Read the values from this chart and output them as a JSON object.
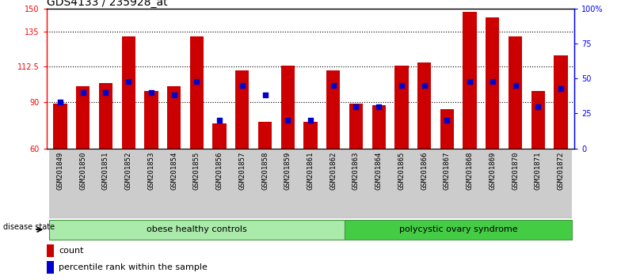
{
  "title": "GDS4133 / 235928_at",
  "samples": [
    "GSM201849",
    "GSM201850",
    "GSM201851",
    "GSM201852",
    "GSM201853",
    "GSM201854",
    "GSM201855",
    "GSM201856",
    "GSM201857",
    "GSM201858",
    "GSM201859",
    "GSM201861",
    "GSM201862",
    "GSM201863",
    "GSM201864",
    "GSM201865",
    "GSM201866",
    "GSM201867",
    "GSM201868",
    "GSM201869",
    "GSM201870",
    "GSM201871",
    "GSM201872"
  ],
  "counts": [
    89,
    100,
    102,
    132,
    97,
    100,
    132,
    76,
    110,
    77,
    113,
    77,
    110,
    89,
    88,
    113,
    115,
    85,
    148,
    144,
    132,
    97,
    120
  ],
  "percentile_ranks": [
    33,
    40,
    40,
    48,
    40,
    38,
    48,
    20,
    45,
    38,
    20,
    20,
    45,
    30,
    30,
    45,
    45,
    20,
    48,
    48,
    45,
    30,
    43
  ],
  "groups": [
    "obese",
    "obese",
    "obese",
    "obese",
    "obese",
    "obese",
    "obese",
    "obese",
    "obese",
    "obese",
    "obese",
    "obese",
    "obese",
    "poly",
    "poly",
    "poly",
    "poly",
    "poly",
    "poly",
    "poly",
    "poly",
    "poly",
    "poly"
  ],
  "group_labels": [
    "obese healthy controls",
    "polycystic ovary syndrome"
  ],
  "obese_color": "#AAEAAA",
  "poly_color": "#44CC44",
  "ylim_left": [
    60,
    150
  ],
  "yticks_left": [
    60,
    90,
    112.5,
    135,
    150
  ],
  "ytick_labels_left": [
    "60",
    "90",
    "112.5",
    "135",
    "150"
  ],
  "ylim_right": [
    0,
    100
  ],
  "yticks_right": [
    0,
    25,
    50,
    75,
    100
  ],
  "ytick_labels_right": [
    "0",
    "25",
    "50",
    "75",
    "100%"
  ],
  "bar_color": "#CC0000",
  "dot_color": "#0000CC",
  "bg_color": "#FFFFFF",
  "title_fontsize": 10,
  "tick_fontsize": 7,
  "label_fontsize": 8
}
